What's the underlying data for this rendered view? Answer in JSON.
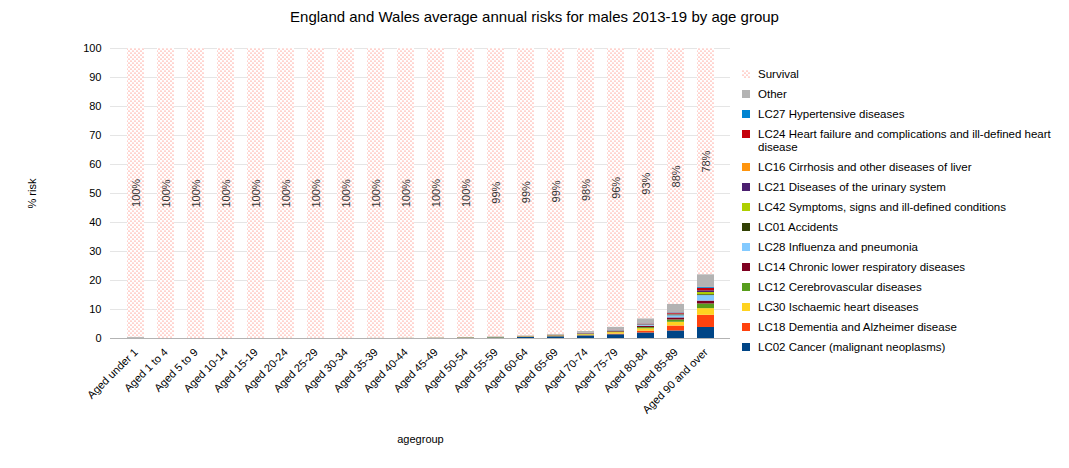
{
  "chart_data": {
    "type": "bar",
    "stacked": true,
    "title": "England and Wales average annual risks for males 2013-19 by age group",
    "x_label": "agegroup",
    "y_label": "% risk",
    "categories": [
      "Aged under 1",
      "Aged 1 to 4",
      "Aged 5 to 9",
      "Aged 10-14",
      "Aged 15-19",
      "Aged 20-24",
      "Aged 25-29",
      "Aged 30-34",
      "Aged 35-39",
      "Aged 40-44",
      "Aged 45-49",
      "Aged 50-54",
      "Aged 55-59",
      "Aged 60-64",
      "Aged 65-69",
      "Aged 70-74",
      "Aged 75-79",
      "Aged 80-84",
      "Aged 85-89",
      "Aged 90 and over"
    ],
    "ylim": [
      0,
      100
    ],
    "yticks": [
      0,
      10,
      20,
      30,
      40,
      50,
      60,
      70,
      80,
      90,
      100
    ],
    "grid": true,
    "legend": "right",
    "data_labels": true,
    "series": [
      {
        "name": "LC02 Cancer (malignant neoplasms)",
        "color": "#004586",
        "values": [
          0.002,
          0.003,
          0.003,
          0.003,
          0.004,
          0.005,
          0.006,
          0.01,
          0.017,
          0.033,
          0.065,
          0.125,
          0.22,
          0.38,
          0.6,
          0.9,
          1.3,
          1.9,
          2.6,
          3.8
        ]
      },
      {
        "name": "LC18 Dementia and Alzheimer disease",
        "color": "#ff420e",
        "values": [
          0,
          0,
          0,
          0,
          0,
          0,
          0,
          0,
          0,
          0,
          0,
          0.001,
          0.003,
          0.009,
          0.025,
          0.07,
          0.22,
          0.65,
          1.7,
          4.2
        ]
      },
      {
        "name": "LC30 Ischaemic heart diseases",
        "color": "#ffd320",
        "values": [
          0,
          0,
          0,
          0,
          0,
          0.001,
          0.002,
          0.006,
          0.013,
          0.026,
          0.045,
          0.07,
          0.1,
          0.15,
          0.22,
          0.33,
          0.5,
          0.8,
          1.3,
          2.3
        ]
      },
      {
        "name": "LC12 Cerebrovascular diseases",
        "color": "#579d1c",
        "values": [
          0.001,
          0,
          0,
          0,
          0,
          0,
          0.001,
          0.002,
          0.003,
          0.006,
          0.01,
          0.015,
          0.024,
          0.04,
          0.07,
          0.12,
          0.22,
          0.42,
          0.8,
          1.6
        ]
      },
      {
        "name": "LC14 Chronic lower respiratory diseases",
        "color": "#7e0021",
        "values": [
          0.001,
          0,
          0,
          0,
          0,
          0,
          0,
          0.001,
          0.001,
          0.003,
          0.007,
          0.014,
          0.028,
          0.055,
          0.1,
          0.18,
          0.29,
          0.45,
          0.7,
          1.0
        ]
      },
      {
        "name": "LC28 Influenza and pneumonia",
        "color": "#83caff",
        "values": [
          0.004,
          0.001,
          0,
          0,
          0,
          0,
          0,
          0.001,
          0.002,
          0.003,
          0.005,
          0.008,
          0.013,
          0.022,
          0.04,
          0.075,
          0.15,
          0.33,
          0.75,
          1.9
        ]
      },
      {
        "name": "LC01 Accidents",
        "color": "#314004",
        "values": [
          0.005,
          0.002,
          0.002,
          0.003,
          0.012,
          0.02,
          0.022,
          0.022,
          0.022,
          0.021,
          0.018,
          0.016,
          0.015,
          0.015,
          0.017,
          0.022,
          0.035,
          0.07,
          0.14,
          0.3
        ]
      },
      {
        "name": "LC42 Symptoms, signs and ill-defined conditions",
        "color": "#aecf00",
        "values": [
          0.03,
          0.001,
          0,
          0,
          0.001,
          0.002,
          0.002,
          0.002,
          0.002,
          0.002,
          0.002,
          0.002,
          0.003,
          0.004,
          0.006,
          0.01,
          0.02,
          0.05,
          0.14,
          0.75
        ]
      },
      {
        "name": "LC21 Diseases of the urinary system",
        "color": "#4b1f6f",
        "values": [
          0.002,
          0,
          0,
          0,
          0,
          0,
          0,
          0,
          0.001,
          0.001,
          0.002,
          0.003,
          0.005,
          0.009,
          0.016,
          0.03,
          0.06,
          0.13,
          0.27,
          0.6
        ]
      },
      {
        "name": "LC16 Cirrhosis and other diseases of liver",
        "color": "#ff950e",
        "values": [
          0.001,
          0,
          0,
          0,
          0,
          0.001,
          0.002,
          0.005,
          0.01,
          0.018,
          0.028,
          0.035,
          0.04,
          0.04,
          0.035,
          0.027,
          0.02,
          0.015,
          0.01,
          0.01
        ]
      },
      {
        "name": "LC24 Heart failure and complications and ill-defined heart disease",
        "color": "#c5000b",
        "values": [
          0.002,
          0,
          0,
          0,
          0,
          0,
          0.001,
          0.002,
          0.003,
          0.004,
          0.006,
          0.008,
          0.011,
          0.016,
          0.025,
          0.042,
          0.075,
          0.15,
          0.33,
          0.85
        ]
      },
      {
        "name": "LC27 Hypertensive diseases",
        "color": "#0084d1",
        "values": [
          0,
          0,
          0,
          0,
          0,
          0,
          0,
          0,
          0.001,
          0.002,
          0.003,
          0.004,
          0.006,
          0.009,
          0.014,
          0.022,
          0.035,
          0.065,
          0.13,
          0.3
        ]
      },
      {
        "name": "Other",
        "color": "#b3b3b3",
        "values": [
          0.352,
          0.013,
          0.005,
          0.006,
          0.013,
          0.021,
          0.024,
          0.029,
          0.035,
          0.051,
          0.069,
          0.089,
          0.132,
          0.201,
          0.282,
          0.572,
          0.975,
          1.77,
          2.93,
          4.39
        ]
      },
      {
        "name": "Survival",
        "color": "#ff5a4a",
        "marker": "dots",
        "values": [
          99.6,
          99.98,
          99.99,
          99.988,
          99.97,
          99.95,
          99.94,
          99.92,
          99.89,
          99.83,
          99.74,
          99.61,
          99.4,
          99.05,
          98.55,
          97.6,
          96.1,
          93.2,
          88.2,
          78
        ],
        "value_labels": [
          "100%",
          "100%",
          "100%",
          "100%",
          "100%",
          "100%",
          "100%",
          "100%",
          "100%",
          "100%",
          "100%",
          "100%",
          "99%",
          "99%",
          "99%",
          "98%",
          "96%",
          "93%",
          "88%",
          "78%"
        ]
      }
    ]
  }
}
